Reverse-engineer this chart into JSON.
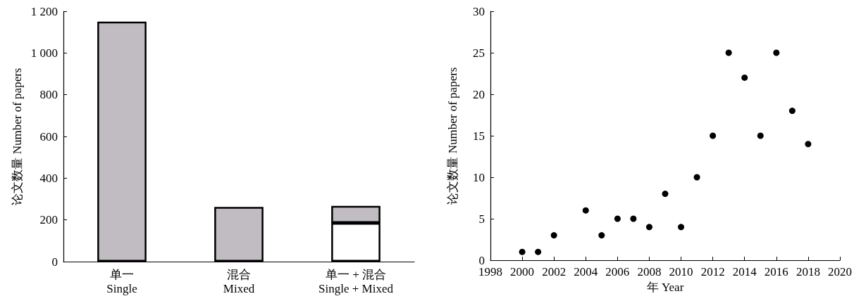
{
  "chart_data": [
    {
      "type": "bar",
      "stacked": true,
      "ylabel": "论文数量 Number of papers",
      "categories": [
        "单一\nSingle",
        "混合\nMixed",
        "单一 + 混合\nSingle + Mixed"
      ],
      "series": [
        {
          "color": "#ffffff",
          "values": [
            null,
            null,
            185
          ]
        },
        {
          "color": "#c1bcc1",
          "values": [
            1150,
            262,
            82
          ]
        }
      ],
      "ylim": [
        0,
        1200
      ],
      "yticks": [
        0,
        200,
        400,
        600,
        800,
        {
          "value": 1000,
          "label": "1 000"
        },
        {
          "value": 1200,
          "label": "1 200"
        }
      ],
      "grid": false
    },
    {
      "type": "scatter",
      "xlabel": "年 Year",
      "ylabel": "论文数量 Number of papers",
      "marker": "circle",
      "x": [
        2000,
        2001,
        2002,
        2004,
        2005,
        2006,
        2007,
        2008,
        2009,
        2010,
        2011,
        2012,
        2013,
        2014,
        2015,
        2016,
        2017,
        2018
      ],
      "series": [
        {
          "color": "#000000",
          "values": [
            1,
            1,
            3,
            6,
            3,
            5,
            5,
            4,
            8,
            4,
            10,
            15,
            25,
            22,
            15,
            25,
            18,
            14
          ]
        }
      ],
      "xlim": [
        1998,
        2020
      ],
      "xticks": [
        1998,
        2000,
        2002,
        2004,
        2006,
        2008,
        2010,
        2012,
        2014,
        2016,
        2018,
        2020
      ],
      "ylim": [
        0,
        30
      ],
      "yticks": [
        0,
        5,
        10,
        15,
        20,
        25,
        30
      ],
      "grid": false
    }
  ]
}
